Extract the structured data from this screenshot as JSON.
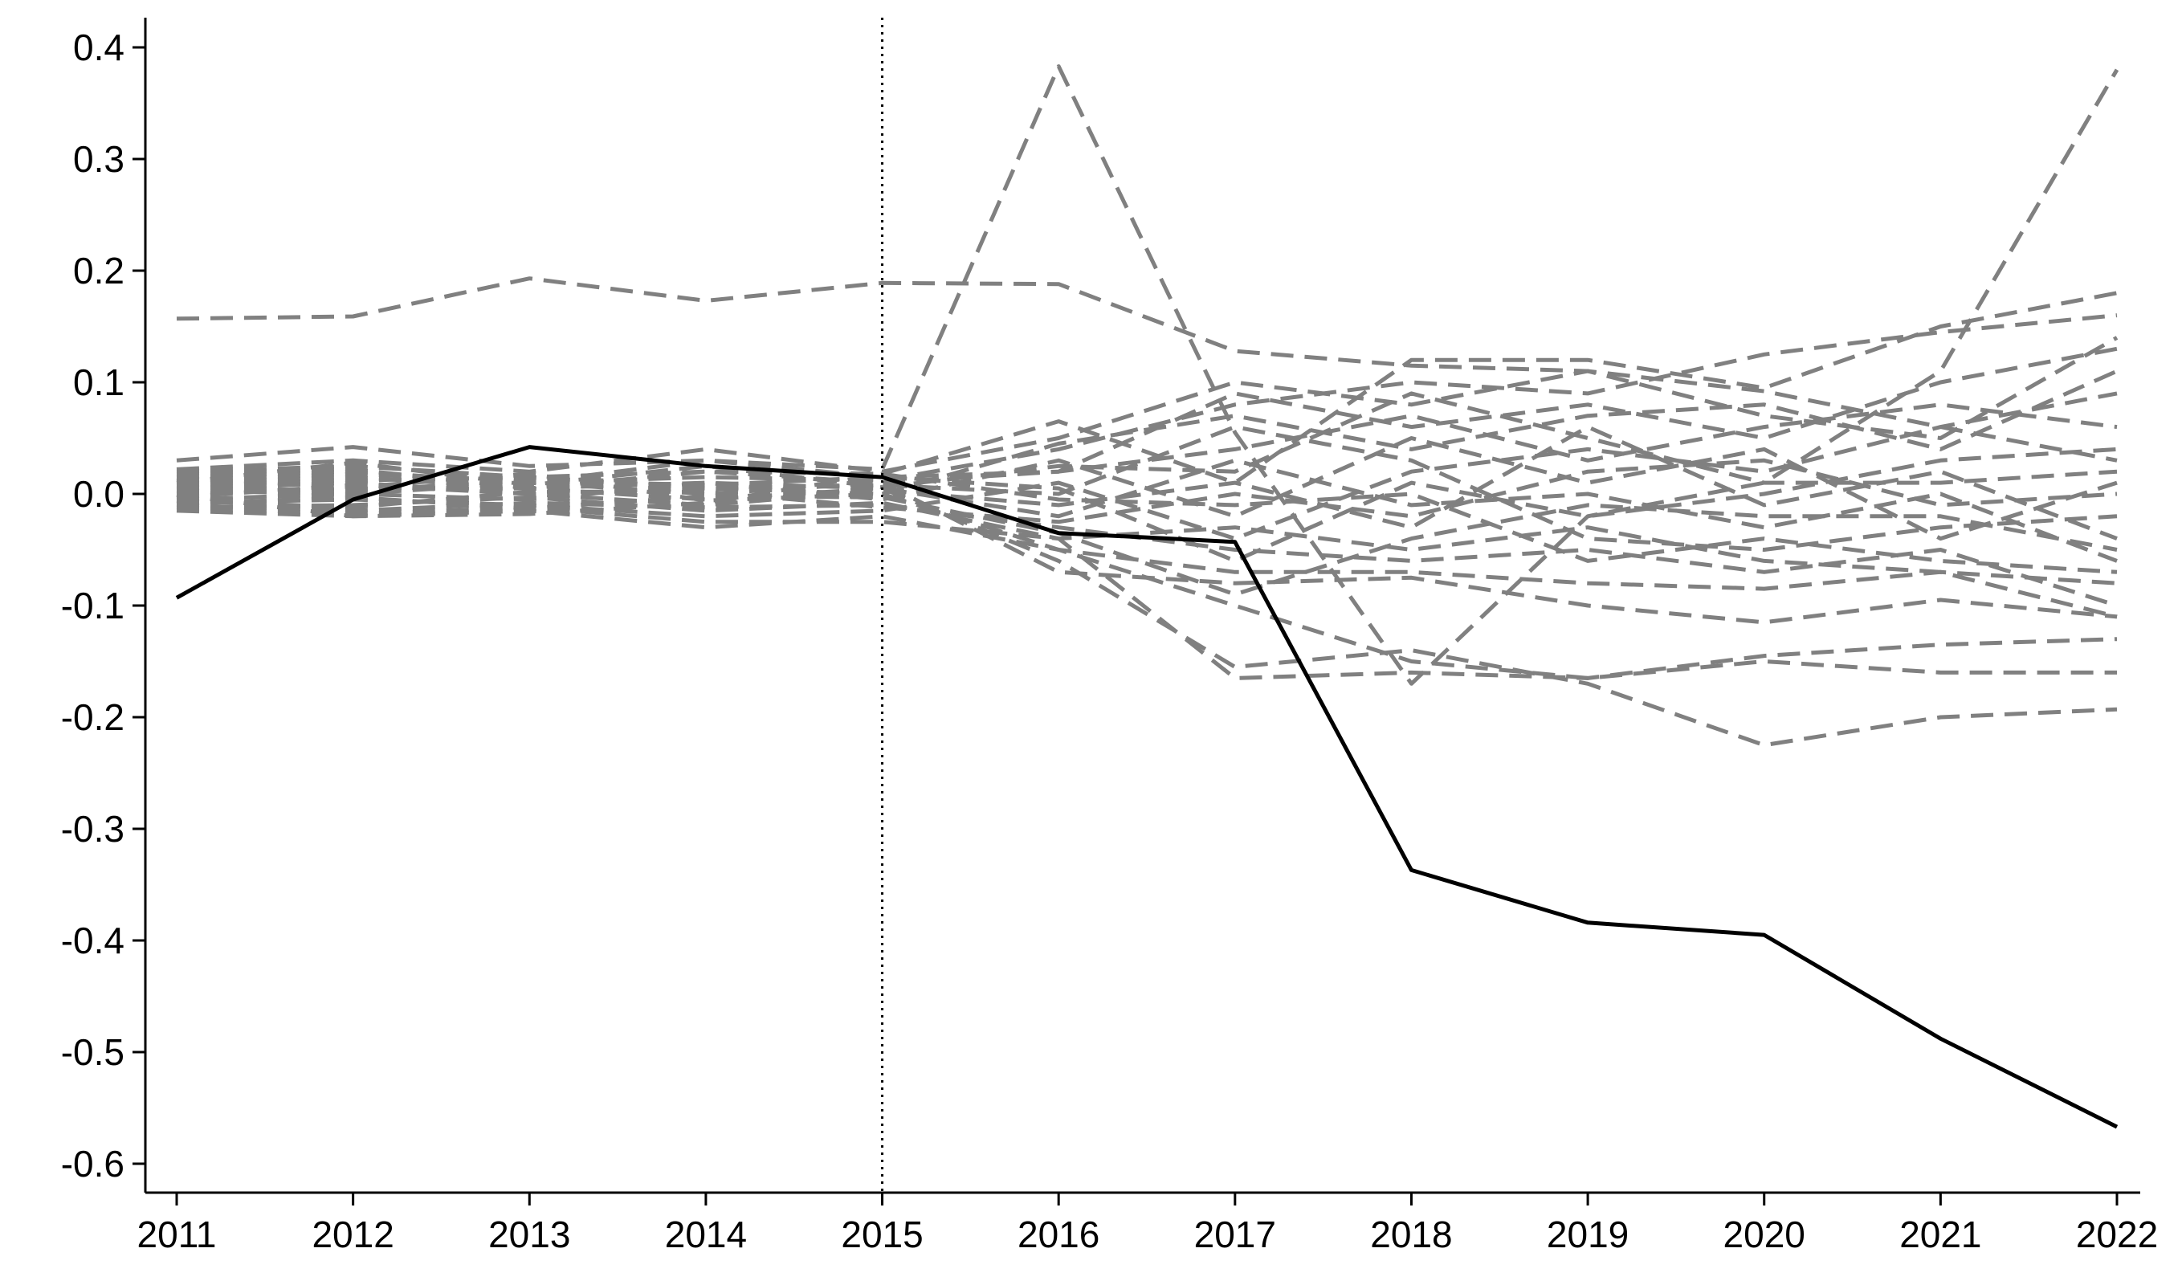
{
  "chart_data": {
    "type": "line",
    "title": "",
    "xlabel": "",
    "ylabel": "",
    "x": [
      2011,
      2012,
      2013,
      2014,
      2015,
      2016,
      2017,
      2018,
      2019,
      2020,
      2021,
      2022
    ],
    "xlim": [
      2011,
      2022
    ],
    "ylim": [
      -0.6,
      0.4
    ],
    "x_ticks": [
      "2011",
      "2012",
      "2013",
      "2014",
      "2015",
      "2016",
      "2017",
      "2018",
      "2019",
      "2020",
      "2021",
      "2022"
    ],
    "y_ticks": [
      "-0.6",
      "-0.5",
      "-0.4",
      "-0.3",
      "-0.2",
      "-0.1",
      "0.0",
      "0.1",
      "0.2",
      "0.3",
      "0.4"
    ],
    "y_tick_values": [
      -0.6,
      -0.5,
      -0.4,
      -0.3,
      -0.2,
      -0.1,
      0.0,
      0.1,
      0.2,
      0.3,
      0.4
    ],
    "grid": false,
    "legend": "none",
    "reference_line": {
      "x": 2015,
      "style": "dotted",
      "color": "#000000"
    },
    "treated": {
      "color": "#000000",
      "values": [
        -0.093,
        -0.005,
        0.042,
        0.025,
        0.015,
        -0.035,
        -0.043,
        -0.337,
        -0.384,
        -0.395,
        -0.488,
        -0.567
      ]
    },
    "placebo_color": "#808080",
    "placebos": [
      [
        0.157,
        0.159,
        0.193,
        0.173,
        0.189,
        0.188,
        0.128,
        0.115,
        0.11,
        0.092,
        0.06,
        0.03
      ],
      [
        0.03,
        0.042,
        0.025,
        0.03,
        0.022,
        0.383,
        0.055,
        -0.17,
        -0.02,
        0.01,
        0.11,
        0.38
      ],
      [
        -0.012,
        -0.018,
        -0.012,
        -0.025,
        -0.025,
        -0.04,
        -0.165,
        -0.16,
        -0.165,
        -0.145,
        -0.135,
        -0.13
      ],
      [
        0.01,
        0.015,
        0.005,
        0.01,
        0.005,
        -0.06,
        -0.155,
        -0.14,
        -0.17,
        -0.225,
        -0.2,
        -0.193
      ],
      [
        -0.005,
        0.0,
        0.01,
        0.0,
        0.01,
        -0.07,
        -0.08,
        -0.075,
        -0.1,
        -0.115,
        -0.095,
        -0.11
      ],
      [
        0.02,
        0.025,
        0.015,
        0.02,
        0.018,
        0.065,
        0.01,
        0.12,
        0.12,
        0.095,
        0.15,
        0.18
      ],
      [
        0.005,
        0.01,
        0.0,
        0.005,
        0.0,
        -0.05,
        -0.1,
        -0.15,
        -0.165,
        -0.15,
        -0.16,
        -0.16
      ],
      [
        0.015,
        0.02,
        0.01,
        0.015,
        0.012,
        0.04,
        0.08,
        0.1,
        0.09,
        0.125,
        0.145,
        0.16
      ],
      [
        -0.01,
        -0.015,
        -0.008,
        -0.012,
        -0.01,
        -0.03,
        -0.05,
        -0.06,
        -0.05,
        -0.07,
        -0.05,
        -0.1
      ],
      [
        0.012,
        0.018,
        0.01,
        0.03,
        0.015,
        0.02,
        0.09,
        0.06,
        0.08,
        0.05,
        0.1,
        0.13
      ],
      [
        0.0,
        0.005,
        0.005,
        -0.005,
        0.005,
        -0.02,
        0.03,
        -0.01,
        0.0,
        -0.03,
        0.0,
        -0.06
      ],
      [
        -0.008,
        -0.005,
        -0.01,
        -0.02,
        -0.015,
        0.01,
        -0.04,
        0.02,
        0.04,
        0.02,
        0.06,
        0.09
      ],
      [
        0.022,
        0.03,
        0.02,
        0.04,
        0.02,
        0.05,
        0.1,
        0.08,
        0.11,
        0.07,
        0.05,
        0.14
      ],
      [
        -0.015,
        -0.02,
        -0.015,
        -0.03,
        -0.02,
        -0.05,
        -0.07,
        -0.07,
        -0.08,
        -0.085,
        -0.07,
        -0.08
      ],
      [
        0.008,
        0.012,
        0.015,
        0.005,
        0.008,
        0.0,
        0.06,
        0.03,
        -0.04,
        -0.05,
        -0.03,
        -0.02
      ],
      [
        0.003,
        0.0,
        -0.005,
        0.01,
        -0.005,
        0.03,
        -0.02,
        0.05,
        0.01,
        0.04,
        -0.04,
        0.01
      ],
      [
        -0.003,
        0.008,
        0.0,
        -0.01,
        0.003,
        -0.01,
        0.01,
        -0.03,
        0.06,
        -0.01,
        0.02,
        -0.04
      ],
      [
        0.018,
        0.022,
        0.005,
        0.02,
        0.01,
        0.02,
        0.04,
        0.07,
        0.03,
        0.06,
        0.08,
        0.06
      ],
      [
        -0.012,
        -0.01,
        -0.003,
        -0.015,
        -0.008,
        -0.04,
        -0.03,
        -0.05,
        -0.03,
        -0.06,
        -0.07,
        -0.11
      ],
      [
        0.006,
        0.003,
        0.012,
        0.008,
        0.015,
        0.005,
        -0.06,
        0.01,
        -0.02,
        0.0,
        0.03,
        0.04
      ],
      [
        -0.006,
        -0.012,
        0.002,
        0.002,
        -0.012,
        -0.025,
        0.0,
        -0.02,
        0.02,
        0.03,
        -0.01,
        0.0
      ],
      [
        0.014,
        0.006,
        0.018,
        -0.006,
        0.0,
        0.045,
        0.07,
        0.04,
        0.07,
        0.08,
        0.04,
        0.11
      ],
      [
        -0.001,
        -0.02,
        -0.018,
        -0.008,
        0.018,
        -0.005,
        -0.01,
        0.0,
        -0.06,
        -0.04,
        -0.06,
        -0.07
      ],
      [
        0.01,
        0.028,
        0.008,
        0.025,
        0.006,
        0.025,
        0.02,
        0.09,
        0.05,
        0.01,
        0.01,
        0.02
      ],
      [
        -0.009,
        -0.003,
        -0.013,
        -0.002,
        -0.003,
        -0.035,
        -0.09,
        -0.04,
        -0.01,
        -0.02,
        -0.02,
        -0.05
      ]
    ]
  }
}
